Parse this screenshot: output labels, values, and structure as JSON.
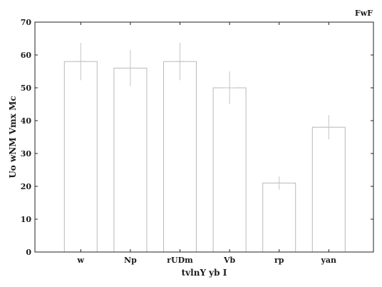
{
  "chart_data": {
    "type": "bar",
    "title": "FwF",
    "xlabel": "tvlnY yb  I",
    "ylabel": "Uo wNM Vmx  Mc",
    "categories": [
      "w",
      "Np",
      "rUDm",
      "Vb",
      "rp",
      "yan"
    ],
    "values": [
      58,
      56,
      58,
      50,
      21,
      38
    ],
    "errors": [
      5.7,
      5.5,
      5.7,
      5.0,
      2.0,
      3.7
    ],
    "ylim": [
      0,
      70
    ],
    "yticks": [
      0,
      10,
      20,
      30,
      40,
      50,
      60,
      70
    ],
    "grid": false,
    "legend": "none",
    "colors": {
      "bar_fill": "#ffffff",
      "bar_edge": "#b9b9b9",
      "error": "#c4c4c4",
      "axis": "#222222"
    }
  }
}
